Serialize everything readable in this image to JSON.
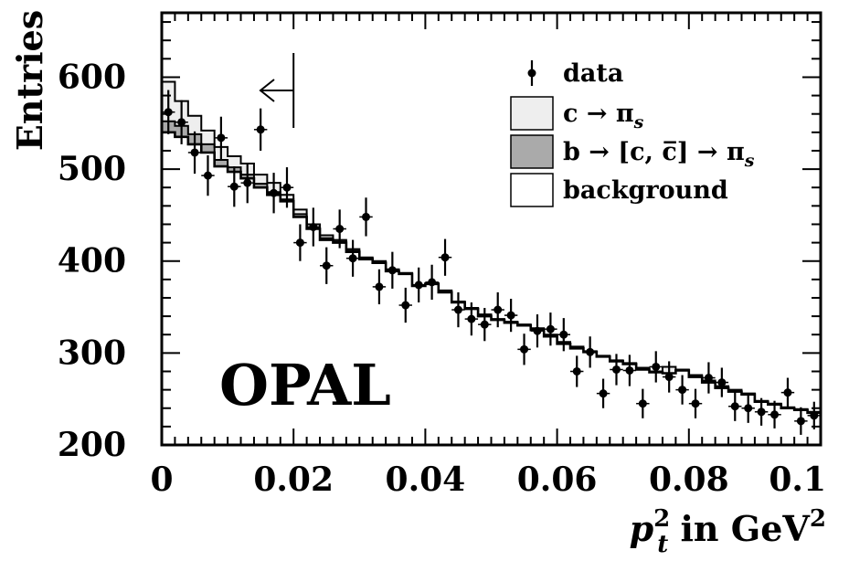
{
  "chart_data": {
    "type": "histogram",
    "title": "",
    "xlabel": "p_t^2 in GeV^2",
    "xlabel_parts": {
      "var": "p",
      "sup": "2",
      "sub": "t",
      "text": " in GeV",
      "unit_sup": "2"
    },
    "ylabel": "Entries",
    "xlim": [
      0,
      0.1
    ],
    "ylim": [
      200,
      670
    ],
    "x_ticks": [
      0,
      0.02,
      0.04,
      0.06,
      0.08,
      0.1
    ],
    "x_tick_labels": [
      "0",
      "0.02",
      "0.04",
      "0.06",
      "0.08",
      "0.1"
    ],
    "y_ticks": [
      200,
      300,
      400,
      500,
      600
    ],
    "y_tick_labels": [
      "200",
      "300",
      "400",
      "500",
      "600"
    ],
    "annotation": "OPAL",
    "cut_marker": {
      "x": 0.02,
      "direction": "left"
    },
    "bin_width": 0.002,
    "bin_edges_start": 0,
    "legend": {
      "placement": "top-right",
      "items": [
        {
          "key": "data",
          "label": "data",
          "style": "marker"
        },
        {
          "key": "c_pis",
          "label": "c → π",
          "sub": "s",
          "style": "box",
          "fill": "#eeeeee"
        },
        {
          "key": "b_c_pis",
          "label": "b → [c, c̅] → π",
          "sub": "s",
          "style": "box",
          "fill": "#aaaaaa"
        },
        {
          "key": "background",
          "label": "background",
          "style": "box",
          "fill": "#ffffff"
        }
      ]
    },
    "series": [
      {
        "name": "background",
        "style": "step",
        "values": [
          540,
          535,
          527,
          518,
          503,
          497,
          490,
          480,
          472,
          465,
          448,
          435,
          423,
          420,
          410,
          402,
          398,
          389,
          386,
          373,
          375,
          366,
          355,
          348,
          340,
          336,
          333,
          330,
          325,
          318,
          310,
          305,
          301,
          296,
          291,
          288,
          282,
          279,
          278,
          281,
          274,
          268,
          262,
          258,
          255,
          247,
          244,
          240,
          238,
          235
        ]
      },
      {
        "name": "b → [c, c̅] → π_s",
        "style": "step",
        "fill": "#aaaaaa",
        "values": [
          552,
          547,
          538,
          527,
          510,
          502,
          494,
          484,
          475,
          467,
          451,
          437,
          425,
          421,
          411,
          403,
          398,
          389,
          386,
          373,
          375,
          366,
          355,
          348,
          340,
          336,
          333,
          330,
          325,
          318,
          310,
          305,
          301,
          296,
          291,
          288,
          282,
          279,
          278,
          281,
          274,
          268,
          262,
          258,
          255,
          247,
          244,
          240,
          238,
          235
        ]
      },
      {
        "name": "c → π_s",
        "style": "step",
        "fill": "#eeeeee",
        "values": [
          595,
          574,
          558,
          542,
          524,
          514,
          506,
          494,
          485,
          472,
          456,
          440,
          428,
          423,
          413,
          404,
          400,
          391,
          387,
          374,
          376,
          368,
          356,
          349,
          342,
          337,
          334,
          331,
          327,
          320,
          312,
          307,
          302,
          297,
          292,
          289,
          284,
          280,
          285,
          282,
          276,
          270,
          264,
          260,
          256,
          248,
          245,
          241,
          239,
          236
        ]
      },
      {
        "name": "data",
        "style": "points",
        "x": [
          0.001,
          0.003,
          0.005,
          0.007,
          0.009,
          0.011,
          0.013,
          0.015,
          0.017,
          0.019,
          0.021,
          0.023,
          0.025,
          0.027,
          0.029,
          0.031,
          0.033,
          0.035,
          0.037,
          0.039,
          0.041,
          0.043,
          0.045,
          0.047,
          0.049,
          0.051,
          0.053,
          0.055,
          0.057,
          0.059,
          0.061,
          0.063,
          0.065,
          0.067,
          0.069,
          0.071,
          0.073,
          0.075,
          0.077,
          0.079,
          0.081,
          0.083,
          0.085,
          0.087,
          0.089,
          0.091,
          0.093,
          0.095,
          0.097,
          0.099
        ],
        "y": [
          562,
          551,
          518,
          493,
          534,
          481,
          485,
          543,
          474,
          480,
          420,
          437,
          395,
          435,
          403,
          448,
          372,
          390,
          352,
          374,
          377,
          404,
          347,
          337,
          331,
          347,
          341,
          304,
          324,
          326,
          320,
          280,
          301,
          256,
          282,
          281,
          245,
          285,
          274,
          260,
          245,
          273,
          268,
          242,
          240,
          236,
          233,
          257,
          226,
          232
        ],
        "errors": [
          24,
          24,
          23,
          22,
          23,
          22,
          22,
          23,
          22,
          22,
          20,
          21,
          20,
          21,
          20,
          21,
          19,
          20,
          19,
          19,
          19,
          20,
          19,
          18,
          18,
          19,
          18,
          17,
          18,
          18,
          18,
          17,
          17,
          16,
          17,
          17,
          16,
          17,
          17,
          16,
          16,
          17,
          16,
          16,
          16,
          15,
          15,
          16,
          15,
          15
        ]
      }
    ]
  }
}
